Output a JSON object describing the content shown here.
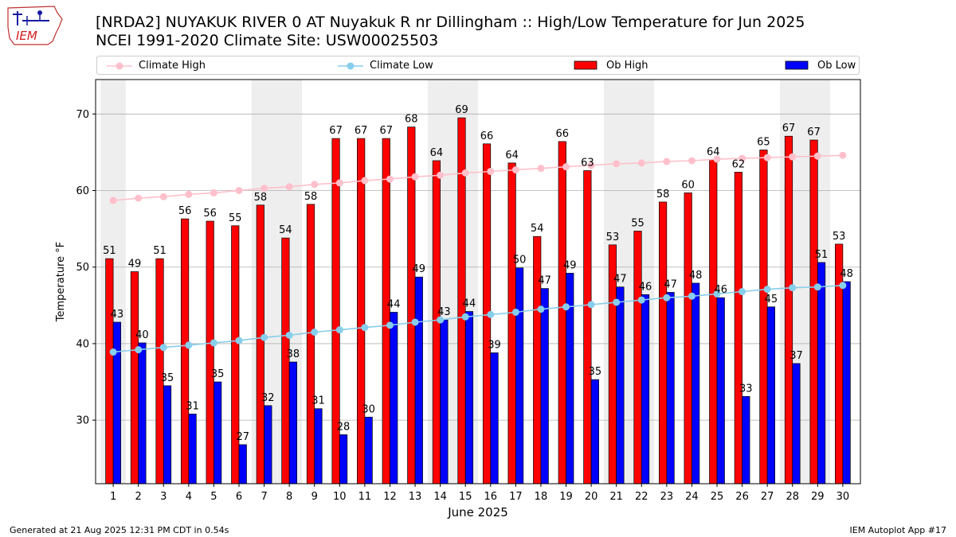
{
  "header": {
    "logo_text": "IEM",
    "title_line1": "[NRDA2] NUYAKUK RIVER 0 AT Nuyakuk R nr Dillingham :: High/Low Temperature for Jun 2025",
    "title_line2": "NCEI 1991-2020 Climate Site: USW00025503"
  },
  "legend": {
    "items": [
      {
        "label": "Climate High",
        "kind": "line",
        "color": "#ffc0cb"
      },
      {
        "label": "Climate Low",
        "kind": "line",
        "color": "#87ceeb"
      },
      {
        "label": "Ob High",
        "kind": "bar",
        "color": "#ff0000"
      },
      {
        "label": "Ob Low",
        "kind": "bar",
        "color": "#0000ff"
      }
    ]
  },
  "footer": {
    "left": "Generated at 21 Aug 2025 12:31 PM CDT in 0.54s",
    "right": "IEM Autoplot App #17"
  },
  "chart_data": {
    "type": "bar",
    "title": "[NRDA2] NUYAKUK RIVER 0 AT Nuyakuk R nr Dillingham :: High/Low Temperature for Jun 2025",
    "subtitle": "NCEI 1991-2020 Climate Site: USW00025503",
    "xlabel": "June 2025",
    "ylabel": "Temperature °F",
    "categories": [
      "1",
      "2",
      "3",
      "4",
      "5",
      "6",
      "7",
      "8",
      "9",
      "10",
      "11",
      "12",
      "13",
      "14",
      "15",
      "16",
      "17",
      "18",
      "19",
      "20",
      "21",
      "22",
      "23",
      "24",
      "25",
      "26",
      "27",
      "28",
      "29",
      "30"
    ],
    "ylim": [
      21.7,
      74.5
    ],
    "yticks": [
      30,
      40,
      50,
      60,
      70
    ],
    "grid": true,
    "legend_position": "top",
    "weekend_shading_days": [
      1,
      7,
      8,
      14,
      15,
      21,
      22,
      28,
      29
    ],
    "series": [
      {
        "name": "Ob High",
        "kind": "bar",
        "color": "#ff0000",
        "values": [
          51.1,
          49.4,
          51.1,
          56.3,
          56.0,
          55.4,
          58.1,
          53.8,
          58.2,
          66.8,
          66.8,
          66.8,
          68.3,
          63.9,
          69.5,
          66.1,
          63.6,
          54.0,
          66.4,
          62.6,
          52.9,
          54.7,
          58.5,
          59.7,
          64.0,
          62.4,
          65.3,
          67.1,
          66.6,
          53.0
        ],
        "labels": [
          "51",
          "49",
          "51",
          "56",
          "56",
          "55",
          "58",
          "54",
          "58",
          "67",
          "67",
          "67",
          "68",
          "64",
          "69",
          "66",
          "64",
          "54",
          "66",
          "63",
          "53",
          "55",
          "58",
          "60",
          "64",
          "62",
          "65",
          "67",
          "67",
          "53"
        ]
      },
      {
        "name": "Ob Low",
        "kind": "bar",
        "color": "#0000ff",
        "values": [
          42.8,
          40.1,
          34.5,
          30.8,
          35.0,
          26.8,
          31.9,
          37.6,
          31.5,
          28.1,
          30.4,
          44.1,
          48.7,
          43.1,
          44.2,
          38.8,
          49.9,
          47.2,
          49.2,
          35.3,
          47.4,
          46.4,
          46.7,
          47.9,
          46.0,
          33.1,
          44.8,
          37.4,
          50.6,
          48.1
        ],
        "labels": [
          "43",
          "40",
          "35",
          "31",
          "35",
          "27",
          "32",
          "38",
          "31",
          "28",
          "30",
          "44",
          "49",
          "43",
          "44",
          "39",
          "50",
          "47",
          "49",
          "35",
          "47",
          "46",
          "47",
          "48",
          "46",
          "33",
          "45",
          "37",
          "51",
          "48"
        ]
      },
      {
        "name": "Climate High",
        "kind": "line",
        "color": "#ffc0cb",
        "values": [
          58.7,
          59.0,
          59.2,
          59.5,
          59.7,
          60.0,
          60.3,
          60.5,
          60.8,
          61.0,
          61.3,
          61.5,
          61.8,
          62.0,
          62.3,
          62.5,
          62.7,
          62.9,
          63.1,
          63.3,
          63.5,
          63.6,
          63.8,
          63.9,
          64.1,
          64.2,
          64.3,
          64.4,
          64.5,
          64.6
        ]
      },
      {
        "name": "Climate Low",
        "kind": "line",
        "color": "#87ceeb",
        "values": [
          38.9,
          39.2,
          39.5,
          39.8,
          40.1,
          40.4,
          40.8,
          41.1,
          41.5,
          41.8,
          42.1,
          42.4,
          42.8,
          43.1,
          43.5,
          43.8,
          44.1,
          44.5,
          44.8,
          45.1,
          45.4,
          45.7,
          46.0,
          46.2,
          46.5,
          46.8,
          47.1,
          47.3,
          47.4,
          47.6
        ]
      }
    ]
  }
}
